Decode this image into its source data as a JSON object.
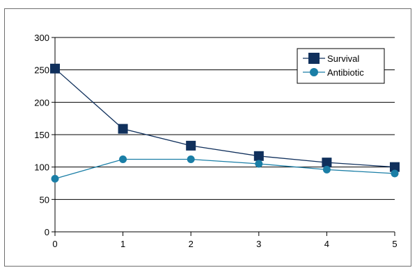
{
  "chart_data": {
    "type": "line",
    "title": "",
    "xlabel": "",
    "ylabel": "",
    "x": [
      0,
      1,
      2,
      3,
      4,
      5
    ],
    "x_tick_labels": [
      "0",
      "1",
      "2",
      "3",
      "4",
      "5"
    ],
    "y_tick_labels": [
      "0",
      "50",
      "100",
      "150",
      "200",
      "250",
      "300"
    ],
    "ylim": [
      0,
      300
    ],
    "xlim": [
      0,
      5
    ],
    "grid": "horizontal",
    "legend_position": "top-right",
    "series": [
      {
        "name": "Survival",
        "values": [
          252,
          159,
          133,
          117,
          107,
          100
        ],
        "color": "#10305c",
        "marker": "square"
      },
      {
        "name": "Antibiotic",
        "values": [
          82,
          112,
          112,
          105,
          96,
          90
        ],
        "color": "#1a7ea6",
        "marker": "circle"
      }
    ]
  }
}
